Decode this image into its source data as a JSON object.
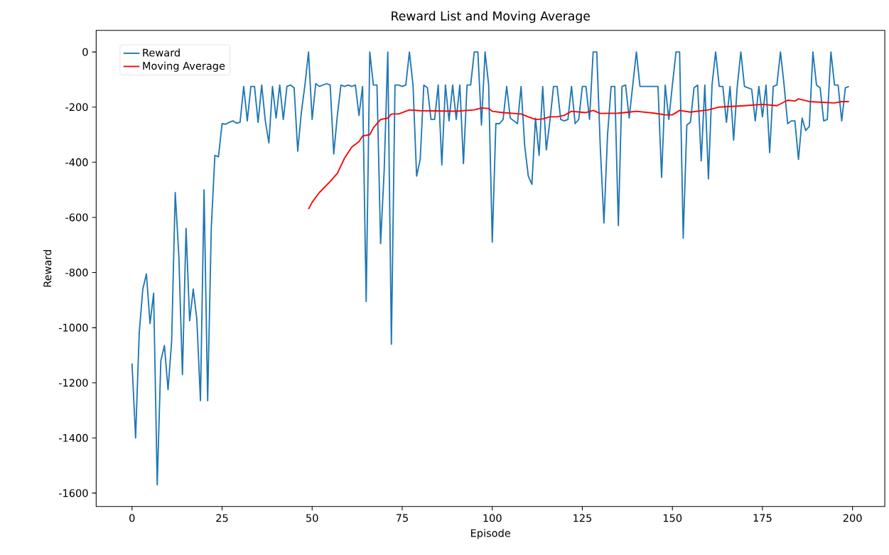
{
  "chart_data": {
    "type": "line",
    "title": "Reward List and Moving Average",
    "xlabel": "Episode",
    "ylabel": "Reward",
    "xlim": [
      -9.95,
      208.95
    ],
    "ylim": [
      -1648.5,
      78.5
    ],
    "xticks": [
      0,
      25,
      50,
      75,
      100,
      125,
      150,
      175,
      200
    ],
    "yticks": [
      -1600,
      -1400,
      -1200,
      -1000,
      -800,
      -600,
      -400,
      -200,
      0
    ],
    "legend": "top left",
    "series": [
      {
        "name": "Reward",
        "color": "#1f77b4",
        "x": [
          0,
          1,
          2,
          3,
          4,
          5,
          6,
          7,
          8,
          9,
          10,
          11,
          12,
          13,
          14,
          15,
          16,
          17,
          18,
          19,
          20,
          21,
          22,
          23,
          24,
          25,
          26,
          27,
          28,
          29,
          30,
          31,
          32,
          33,
          34,
          35,
          36,
          37,
          38,
          39,
          40,
          41,
          42,
          43,
          44,
          45,
          46,
          47,
          48,
          49,
          50,
          51,
          52,
          53,
          54,
          55,
          56,
          57,
          58,
          59,
          60,
          61,
          62,
          63,
          64,
          65,
          66,
          67,
          68,
          69,
          70,
          71,
          72,
          73,
          74,
          75,
          76,
          77,
          78,
          79,
          80,
          81,
          82,
          83,
          84,
          85,
          86,
          87,
          88,
          89,
          90,
          91,
          92,
          93,
          94,
          95,
          96,
          97,
          98,
          99,
          100,
          101,
          102,
          103,
          104,
          105,
          106,
          107,
          108,
          109,
          110,
          111,
          112,
          113,
          114,
          115,
          116,
          117,
          118,
          119,
          120,
          121,
          122,
          123,
          124,
          125,
          126,
          127,
          128,
          129,
          130,
          131,
          132,
          133,
          134,
          135,
          136,
          137,
          138,
          139,
          140,
          141,
          146,
          147,
          148,
          149,
          150,
          151,
          152,
          153,
          154,
          155,
          156,
          157,
          158,
          159,
          160,
          161,
          162,
          163,
          164,
          165,
          166,
          167,
          168,
          169,
          170,
          171,
          172,
          173,
          174,
          175,
          176,
          177,
          178,
          179,
          180,
          181,
          182,
          183,
          184,
          185,
          186,
          187,
          188,
          189,
          190,
          191,
          192,
          193,
          194,
          195,
          196,
          197,
          198,
          199
        ],
        "values": [
          -1130,
          -1400,
          -1020,
          -860,
          -805,
          -985,
          -875,
          -1570,
          -1120,
          -1065,
          -1225,
          -1050,
          -510,
          -740,
          -1170,
          -640,
          -975,
          -860,
          -970,
          -1265,
          -500,
          -1265,
          -640,
          -375,
          -380,
          -260,
          -262,
          -255,
          -250,
          -258,
          -255,
          -125,
          -250,
          -125,
          -125,
          -255,
          -120,
          -250,
          -330,
          -125,
          -240,
          -120,
          -245,
          -125,
          -120,
          -130,
          -360,
          -220,
          -120,
          0,
          -245,
          -115,
          -125,
          -120,
          -115,
          -120,
          -370,
          -230,
          -120,
          -125,
          -120,
          -125,
          -120,
          -230,
          -125,
          -905,
          0,
          -120,
          -120,
          -695,
          -430,
          0,
          -1060,
          -120,
          -120,
          -125,
          -120,
          0,
          -120,
          -450,
          -390,
          -120,
          -130,
          -245,
          -245,
          -120,
          -410,
          -120,
          -250,
          -120,
          -245,
          -120,
          -405,
          -120,
          -120,
          0,
          0,
          -265,
          0,
          -120,
          -690,
          -260,
          -260,
          -245,
          -125,
          -240,
          -250,
          -260,
          -125,
          -340,
          -450,
          -480,
          -240,
          -375,
          -125,
          -355,
          -250,
          -125,
          -125,
          -245,
          -250,
          -245,
          -125,
          -260,
          -245,
          -125,
          -125,
          -245,
          0,
          0,
          -350,
          -620,
          -300,
          -125,
          -125,
          -630,
          -125,
          -120,
          -240,
          -120,
          0,
          -125,
          -125,
          -455,
          -120,
          -245,
          -120,
          0,
          0,
          -675,
          -265,
          -255,
          -130,
          -120,
          -395,
          -120,
          -460,
          -120,
          0,
          -125,
          -125,
          -255,
          -125,
          -320,
          -125,
          0,
          -125,
          -130,
          -135,
          -250,
          -125,
          -235,
          -120,
          -365,
          -125,
          -120,
          0,
          -120,
          -260,
          -250,
          -250,
          -390,
          -240,
          -285,
          -270,
          0,
          -120,
          -130,
          -250,
          -245,
          0,
          -120,
          -120,
          -250,
          -130,
          -125
        ]
      },
      {
        "name": "Moving Average",
        "color": "#ff0000",
        "x": [
          49,
          50,
          52,
          55,
          57,
          59,
          61,
          63,
          64,
          66,
          67,
          69,
          71,
          72,
          74,
          77,
          80,
          90,
          95,
          97,
          99,
          100,
          103,
          108,
          110,
          112,
          114,
          116,
          118,
          120,
          122,
          126,
          128,
          130,
          135,
          138,
          140,
          145,
          148,
          150,
          152,
          155,
          160,
          163,
          170,
          175,
          179,
          182,
          184,
          185,
          188,
          195,
          197,
          199
        ],
        "values": [
          -570,
          -545,
          -510,
          -470,
          -440,
          -385,
          -345,
          -325,
          -305,
          -300,
          -275,
          -245,
          -240,
          -225,
          -225,
          -210,
          -213,
          -215,
          -210,
          -203,
          -205,
          -215,
          -220,
          -225,
          -235,
          -245,
          -243,
          -235,
          -235,
          -230,
          -215,
          -220,
          -212,
          -223,
          -222,
          -218,
          -215,
          -222,
          -228,
          -228,
          -212,
          -218,
          -210,
          -200,
          -195,
          -190,
          -195,
          -175,
          -178,
          -170,
          -180,
          -185,
          -180,
          -180
        ]
      }
    ]
  }
}
